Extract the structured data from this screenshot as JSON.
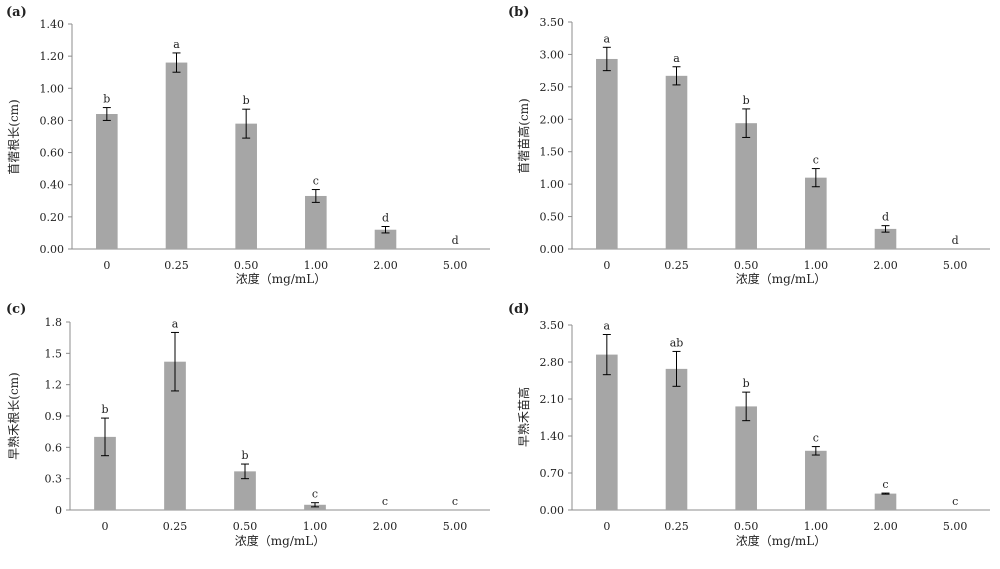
{
  "chart_data": [
    {
      "type": "bar",
      "panel_label": "(a)",
      "categories": [
        "0",
        "0.25",
        "0.50",
        "1.00",
        "2.00",
        "5.00"
      ],
      "values": [
        0.84,
        1.16,
        0.78,
        0.33,
        0.12,
        0.0
      ],
      "errors": [
        0.04,
        0.06,
        0.09,
        0.04,
        0.02,
        0.0
      ],
      "significance": [
        "b",
        "a",
        "b",
        "c",
        "d",
        "d"
      ],
      "xlabel": "浓度（mg/mL）",
      "ylabel": "苜蓿根长(cm)",
      "ylim": [
        0,
        1.4
      ],
      "yticks": [
        "0.00",
        "0.20",
        "0.40",
        "0.60",
        "0.80",
        "1.00",
        "1.20",
        "1.40"
      ],
      "bar_color": "#a6a6a6",
      "grid": false
    },
    {
      "type": "bar",
      "panel_label": "(b)",
      "categories": [
        "0",
        "0.25",
        "0.50",
        "1.00",
        "2.00",
        "5.00"
      ],
      "values": [
        2.93,
        2.67,
        1.94,
        1.1,
        0.31,
        0.0
      ],
      "errors": [
        0.18,
        0.14,
        0.22,
        0.14,
        0.05,
        0.0
      ],
      "significance": [
        "a",
        "a",
        "b",
        "c",
        "d",
        "d"
      ],
      "xlabel": "浓度（mg/mL）",
      "ylabel": "苜蓿苗高(cm)",
      "ylim": [
        0,
        3.5
      ],
      "yticks": [
        "0.00",
        "0.50",
        "1.00",
        "1.50",
        "2.00",
        "2.50",
        "3.00",
        "3.50"
      ],
      "bar_color": "#a6a6a6",
      "grid": false
    },
    {
      "type": "bar",
      "panel_label": "(c)",
      "categories": [
        "0",
        "0.25",
        "0.50",
        "1.00",
        "2.00",
        "5.00"
      ],
      "values": [
        0.7,
        1.42,
        0.37,
        0.05,
        0.0,
        0.0
      ],
      "errors": [
        0.18,
        0.28,
        0.07,
        0.02,
        0.0,
        0.0
      ],
      "significance": [
        "b",
        "a",
        "b",
        "c",
        "c",
        "c"
      ],
      "xlabel": "浓度（mg/mL）",
      "ylabel": "早熟禾根长(cm)",
      "ylim": [
        0,
        1.8
      ],
      "yticks": [
        "0",
        "0.3",
        "0.6",
        "0.9",
        "1.2",
        "1.5",
        "1.8"
      ],
      "bar_color": "#a6a6a6",
      "grid": false
    },
    {
      "type": "bar",
      "panel_label": "(d)",
      "categories": [
        "0",
        "0.25",
        "0.50",
        "1.00",
        "2.00",
        "5.00"
      ],
      "values": [
        2.94,
        2.67,
        1.96,
        1.12,
        0.31,
        0.0
      ],
      "errors": [
        0.38,
        0.33,
        0.27,
        0.08,
        0.01,
        0.0
      ],
      "significance": [
        "a",
        "ab",
        "b",
        "c",
        "c",
        "c"
      ],
      "xlabel": "浓度（mg/mL）",
      "ylabel": "早熟禾苗高",
      "ylim": [
        0,
        3.5
      ],
      "yticks": [
        "0.00",
        "0.70",
        "1.40",
        "2.10",
        "2.80",
        "3.50"
      ],
      "bar_color": "#a6a6a6",
      "grid": false
    }
  ]
}
